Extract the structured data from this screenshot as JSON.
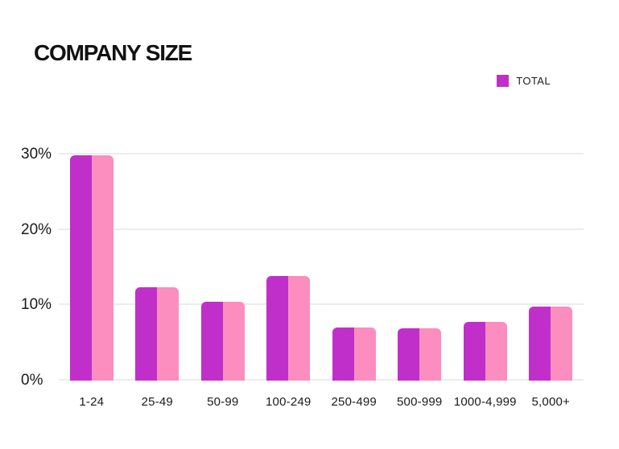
{
  "page": {
    "background": "#ffffff"
  },
  "legend": {
    "items": [
      {
        "label": "TOTAL",
        "color": "#c12fca"
      }
    ]
  },
  "chart_data": {
    "type": "bar",
    "title": "COMPANY SIZE",
    "categories": [
      "1-24",
      "25-49",
      "50-99",
      "100-249",
      "250-499",
      "500-999",
      "1000-4,999",
      "5,000+"
    ],
    "series": [
      {
        "name": "TOTAL",
        "color": "#c12fca",
        "in_legend": true,
        "values": [
          29.9,
          12.4,
          10.5,
          13.9,
          7.0,
          6.9,
          7.8,
          9.8
        ]
      },
      {
        "name": "TOTAL",
        "color": "#fb8ebe",
        "in_legend": false,
        "values": [
          29.9,
          12.4,
          10.5,
          13.9,
          7.0,
          6.9,
          7.8,
          9.8
        ]
      }
    ],
    "xlabel": "",
    "ylabel": "",
    "unit": "%",
    "y_axis": {
      "tick_labels": [
        "0%",
        "10%",
        "20%",
        "30%"
      ],
      "tick_values": [
        0,
        10,
        20,
        30
      ],
      "ylim": [
        0,
        32
      ]
    },
    "grid": "horizontal",
    "legend_position": "top-right"
  }
}
